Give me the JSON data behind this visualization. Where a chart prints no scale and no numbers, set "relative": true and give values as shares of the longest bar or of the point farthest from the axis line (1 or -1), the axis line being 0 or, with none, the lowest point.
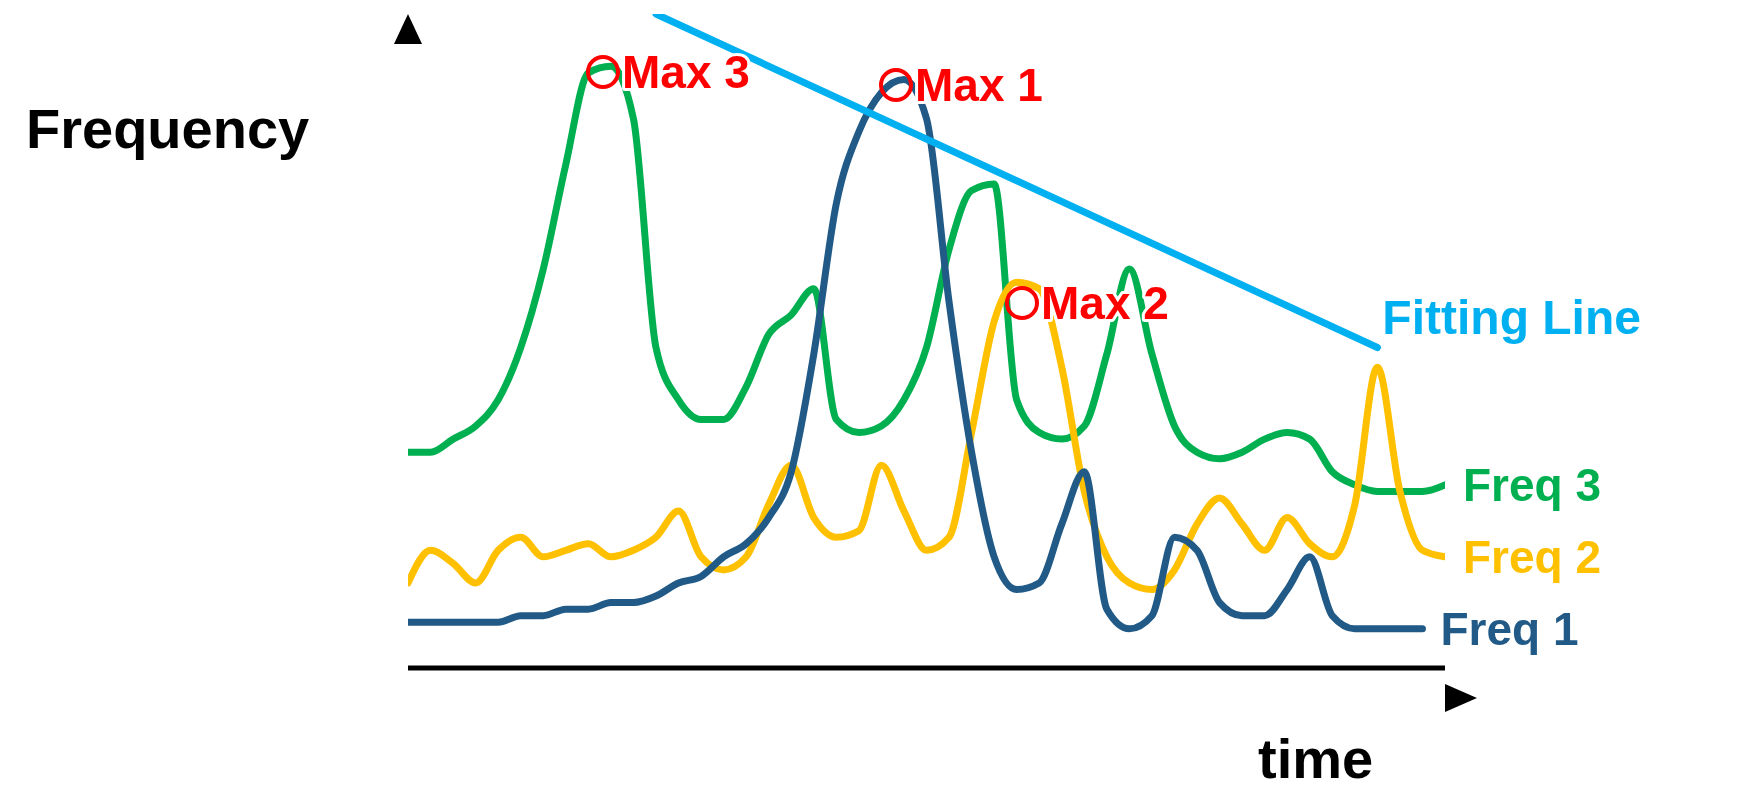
{
  "chart_data": {
    "type": "line",
    "relative": true,
    "xlabel": "time",
    "ylabel": "Frequency",
    "legend": false,
    "grid": false,
    "marker": "none",
    "categories": [
      null,
      null,
      null,
      null,
      null,
      null,
      null,
      null,
      null,
      null,
      null,
      null,
      null,
      null,
      null,
      null,
      null,
      null,
      null,
      null,
      null,
      null,
      null,
      null,
      null,
      null,
      null,
      null,
      null,
      null,
      null,
      null,
      null,
      null,
      null,
      null,
      null,
      null,
      null,
      null,
      null,
      null,
      null,
      null,
      null,
      null,
      null
    ],
    "series": [
      {
        "name": "Freq 3",
        "color": "#00b050",
        "values": [
          0.33,
          0.33,
          0.35,
          0.37,
          0.41,
          0.49,
          0.61,
          0.77,
          0.91,
          0.92,
          0.84,
          0.49,
          0.41,
          0.38,
          0.38,
          0.43,
          0.51,
          0.54,
          0.58,
          0.38,
          0.36,
          0.37,
          0.41,
          0.49,
          0.64,
          0.73,
          0.74,
          0.41,
          0.36,
          0.35,
          0.37,
          0.48,
          0.61,
          0.48,
          0.37,
          0.33,
          0.32,
          0.33,
          0.35,
          0.36,
          0.35,
          0.3,
          0.28,
          0.27,
          0.27,
          0.27,
          0.28
        ]
      },
      {
        "name": "Freq 2",
        "color": "#ffc000",
        "values": [
          0.13,
          0.18,
          0.16,
          0.13,
          0.18,
          0.2,
          0.17,
          0.18,
          0.19,
          0.17,
          0.18,
          0.2,
          0.24,
          0.17,
          0.15,
          0.17,
          0.25,
          0.31,
          0.23,
          0.2,
          0.21,
          0.31,
          0.24,
          0.18,
          0.2,
          0.36,
          0.53,
          0.59,
          0.58,
          0.46,
          0.27,
          0.17,
          0.13,
          0.12,
          0.15,
          0.22,
          0.26,
          0.22,
          0.18,
          0.23,
          0.19,
          0.17,
          0.25,
          0.46,
          0.27,
          0.18,
          0.17
        ]
      },
      {
        "name": "Freq 1",
        "color": "#215a87",
        "values": [
          0.07,
          0.07,
          0.07,
          0.07,
          0.07,
          0.08,
          0.08,
          0.09,
          0.09,
          0.1,
          0.1,
          0.11,
          0.13,
          0.14,
          0.17,
          0.19,
          0.23,
          0.3,
          0.48,
          0.71,
          0.82,
          0.88,
          0.9,
          0.84,
          0.56,
          0.33,
          0.17,
          0.12,
          0.13,
          0.22,
          0.3,
          0.09,
          0.06,
          0.08,
          0.2,
          0.18,
          0.1,
          0.08,
          0.08,
          0.12,
          0.17,
          0.08,
          0.06,
          0.06,
          0.06,
          0.06,
          null
        ]
      },
      {
        "name": "Fitting Line",
        "color": "#00b0f0",
        "values": [
          null,
          null,
          null,
          null,
          null,
          null,
          null,
          null,
          null,
          null,
          null,
          1,
          null,
          null,
          null,
          null,
          null,
          null,
          null,
          null,
          null,
          null,
          null,
          null,
          null,
          null,
          null,
          null,
          null,
          null,
          null,
          null,
          null,
          null,
          null,
          null,
          null,
          null,
          null,
          null,
          null,
          null,
          null,
          0.49,
          null,
          null,
          null
        ]
      }
    ],
    "annotations": [
      "Max 3",
      "Max 1",
      "Max 2"
    ]
  }
}
